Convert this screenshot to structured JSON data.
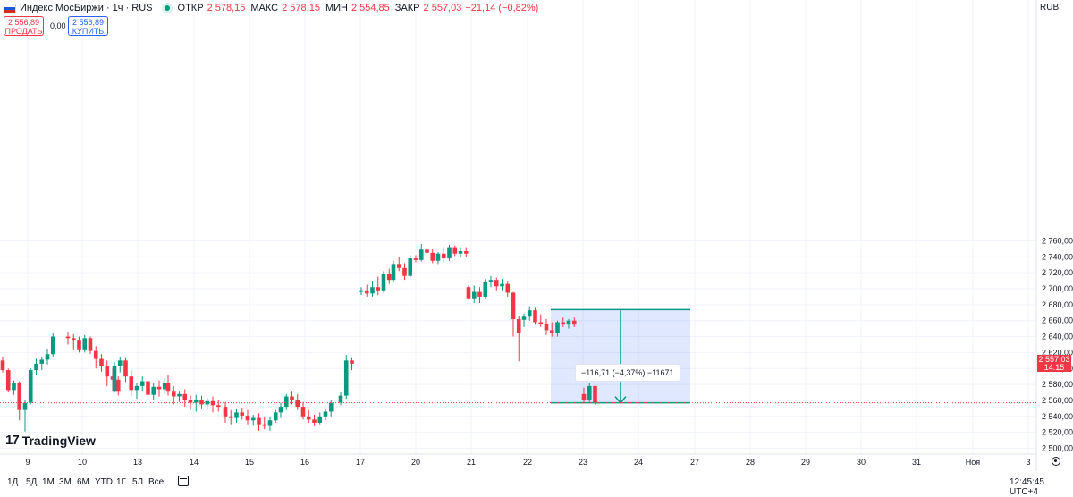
{
  "header": {
    "symbol": "Индекс МосБиржи · 1ч · RUS",
    "ohlc": [
      {
        "label": "ОТКР",
        "value": "2 578,15"
      },
      {
        "label": "МАКС",
        "value": "2 578,15"
      },
      {
        "label": "МИН",
        "value": "2 554,85"
      },
      {
        "label": "ЗАКР",
        "value": "2 557,03"
      }
    ],
    "change": "−21,14 (−0,82%)"
  },
  "trade": {
    "sell_price": "2 556,89",
    "sell_label": "ПРОДАТЬ",
    "spread": "0,00",
    "buy_price": "2 556,89",
    "buy_label": "КУПИТЬ"
  },
  "currency": "RUB",
  "logo_text": "TradingView",
  "last_price": {
    "value": "2 557,03",
    "countdown": "14:15"
  },
  "measure": {
    "label": "−116,71 (−4,37%) −11671"
  },
  "colors": {
    "up": "#089981",
    "down": "#f23645",
    "measure_fill": "#2962ff",
    "measure_line": "#089981"
  },
  "timeframes": [
    "1Д",
    "5Д",
    "1М",
    "3М",
    "6М",
    "YTD",
    "1Г",
    "5Л",
    "Все"
  ],
  "clock": "12:45:45 UTC+4",
  "chart_data": {
    "type": "candlestick",
    "timeframe": "1h",
    "y_axis": {
      "range": [
        2500,
        2760
      ],
      "ticks": [
        "2 760,00",
        "2 740,00",
        "2 720,00",
        "2 700,00",
        "2 680,00",
        "2 660,00",
        "2 640,00",
        "2 620,00",
        "2 600,00",
        "2 580,00",
        "2 560,00",
        "2 540,00",
        "2 520,00",
        "2 500,00"
      ],
      "tick_values": [
        2760,
        2740,
        2720,
        2700,
        2680,
        2660,
        2640,
        2620,
        2600,
        2580,
        2560,
        2540,
        2520,
        2500
      ]
    },
    "x_axis": {
      "ticks": [
        "9",
        "10",
        "13",
        "14",
        "15",
        "16",
        "17",
        "20",
        "21",
        "22",
        "23",
        "24",
        "27",
        "28",
        "29",
        "30",
        "31",
        "Ноя",
        "3"
      ]
    },
    "sessions": [
      {
        "date": "9",
        "bars": [
          [
            2610,
            2615,
            2595,
            2598
          ],
          [
            2598,
            2600,
            2570,
            2573
          ],
          [
            2573,
            2585,
            2567,
            2582
          ],
          [
            2582,
            2584,
            2535,
            2548
          ],
          [
            2548,
            2560,
            2521,
            2557
          ],
          [
            2557,
            2600,
            2555,
            2598
          ],
          [
            2598,
            2612,
            2592,
            2606
          ],
          [
            2606,
            2615,
            2598,
            2611
          ],
          [
            2611,
            2625,
            2605,
            2618
          ],
          [
            2618,
            2645,
            2615,
            2640
          ]
        ]
      },
      {
        "date": "10",
        "bars": [
          [
            2640,
            2646,
            2630,
            2638
          ],
          [
            2638,
            2643,
            2624,
            2636
          ],
          [
            2636,
            2640,
            2620,
            2624
          ],
          [
            2624,
            2642,
            2620,
            2638
          ],
          [
            2638,
            2640,
            2618,
            2622
          ],
          [
            2622,
            2628,
            2600,
            2612
          ],
          [
            2612,
            2618,
            2596,
            2603
          ],
          [
            2603,
            2610,
            2578,
            2590
          ],
          [
            2590,
            2600,
            2572,
            2586
          ],
          [
            2586,
            2590,
            2566,
            2572
          ]
        ]
      },
      {
        "date": "13",
        "bars": [
          [
            2572,
            2608,
            2570,
            2603
          ],
          [
            2603,
            2615,
            2595,
            2610
          ],
          [
            2610,
            2614,
            2583,
            2590
          ],
          [
            2590,
            2598,
            2565,
            2573
          ],
          [
            2573,
            2582,
            2562,
            2578
          ],
          [
            2578,
            2590,
            2572,
            2584
          ],
          [
            2584,
            2588,
            2560,
            2567
          ],
          [
            2567,
            2582,
            2560,
            2577
          ],
          [
            2577,
            2585,
            2565,
            2574
          ],
          [
            2574,
            2588,
            2568,
            2582
          ]
        ]
      },
      {
        "date": "14",
        "bars": [
          [
            2582,
            2592,
            2566,
            2572
          ],
          [
            2572,
            2578,
            2555,
            2565
          ],
          [
            2565,
            2572,
            2558,
            2568
          ],
          [
            2568,
            2574,
            2552,
            2560
          ],
          [
            2560,
            2566,
            2548,
            2557
          ],
          [
            2557,
            2567,
            2546,
            2560
          ],
          [
            2560,
            2566,
            2550,
            2555
          ],
          [
            2555,
            2563,
            2548,
            2559
          ],
          [
            2559,
            2565,
            2545,
            2554
          ],
          [
            2554,
            2560,
            2546,
            2552
          ]
        ]
      },
      {
        "date": "15",
        "bars": [
          [
            2552,
            2558,
            2532,
            2540
          ],
          [
            2540,
            2548,
            2530,
            2538
          ],
          [
            2538,
            2550,
            2532,
            2545
          ],
          [
            2545,
            2551,
            2536,
            2541
          ],
          [
            2541,
            2548,
            2530,
            2535
          ],
          [
            2535,
            2542,
            2528,
            2538
          ],
          [
            2538,
            2544,
            2522,
            2530
          ],
          [
            2530,
            2540,
            2524,
            2528
          ],
          [
            2528,
            2540,
            2522,
            2535
          ],
          [
            2535,
            2548,
            2532,
            2545
          ]
        ]
      },
      {
        "date": "16",
        "bars": [
          [
            2545,
            2557,
            2538,
            2552
          ],
          [
            2552,
            2568,
            2548,
            2565
          ],
          [
            2565,
            2572,
            2555,
            2560
          ],
          [
            2560,
            2568,
            2548,
            2552
          ],
          [
            2552,
            2558,
            2536,
            2540
          ],
          [
            2540,
            2548,
            2532,
            2536
          ],
          [
            2536,
            2542,
            2528,
            2532
          ],
          [
            2532,
            2545,
            2530,
            2540
          ],
          [
            2540,
            2550,
            2535,
            2546
          ],
          [
            2546,
            2560,
            2540,
            2557
          ]
        ]
      },
      {
        "date": "17",
        "bars": [
          [
            2557,
            2570,
            2554,
            2566
          ],
          [
            2566,
            2617,
            2562,
            2610
          ],
          [
            2610,
            2614,
            2598,
            2606
          ]
        ]
      },
      {
        "date": "17b",
        "bars": [
          [
            2696,
            2702,
            2692,
            2698
          ],
          [
            2698,
            2705,
            2690,
            2694
          ],
          [
            2694,
            2710,
            2690,
            2702
          ],
          [
            2702,
            2715,
            2692,
            2698
          ],
          [
            2698,
            2722,
            2695,
            2718
          ],
          [
            2718,
            2725,
            2706,
            2711
          ]
        ]
      },
      {
        "date": "20",
        "bars": [
          [
            2711,
            2735,
            2708,
            2731
          ],
          [
            2731,
            2740,
            2722,
            2726
          ],
          [
            2726,
            2732,
            2711,
            2716
          ],
          [
            2716,
            2742,
            2714,
            2738
          ],
          [
            2738,
            2742,
            2733,
            2736
          ],
          [
            2736,
            2756,
            2734,
            2749
          ],
          [
            2749,
            2758,
            2738,
            2745
          ],
          [
            2745,
            2750,
            2732,
            2735
          ],
          [
            2735,
            2746,
            2731,
            2744
          ],
          [
            2744,
            2752,
            2733,
            2738
          ],
          [
            2738,
            2755,
            2735,
            2752
          ],
          [
            2752,
            2754,
            2741,
            2744
          ],
          [
            2744,
            2752,
            2740,
            2747
          ],
          [
            2747,
            2752,
            2740,
            2744
          ]
        ]
      },
      {
        "date": "21",
        "bars": [
          [
            2702,
            2704,
            2686,
            2688
          ],
          [
            2688,
            2704,
            2682,
            2696
          ],
          [
            2696,
            2702,
            2682,
            2690
          ],
          [
            2690,
            2712,
            2688,
            2708
          ],
          [
            2708,
            2716,
            2702,
            2711
          ],
          [
            2711,
            2714,
            2698,
            2703
          ],
          [
            2703,
            2712,
            2698,
            2706
          ],
          [
            2706,
            2710,
            2690,
            2695
          ],
          [
            2695,
            2696,
            2640,
            2662
          ],
          [
            2662,
            2666,
            2609,
            2644
          ]
        ]
      },
      {
        "date": "22",
        "bars": [
          [
            2661,
            2669,
            2652,
            2665
          ],
          [
            2665,
            2678,
            2660,
            2673
          ],
          [
            2673,
            2676,
            2655,
            2658
          ],
          [
            2658,
            2668,
            2652,
            2656
          ],
          [
            2656,
            2662,
            2642,
            2648
          ],
          [
            2648,
            2658,
            2640,
            2644
          ],
          [
            2644,
            2660,
            2640,
            2658
          ],
          [
            2658,
            2664,
            2652,
            2655
          ],
          [
            2655,
            2662,
            2650,
            2660
          ],
          [
            2660,
            2664,
            2652,
            2655
          ]
        ]
      },
      {
        "date": "23",
        "bars": [
          [
            2568,
            2576,
            2556,
            2560
          ],
          [
            2560,
            2582,
            2558,
            2578
          ],
          [
            2578,
            2578,
            2555,
            2557
          ]
        ]
      }
    ],
    "measurement": {
      "from": 2673.74,
      "to": 2557.03,
      "change": -116.71,
      "percent": -4.37,
      "ticks": -11671
    }
  }
}
